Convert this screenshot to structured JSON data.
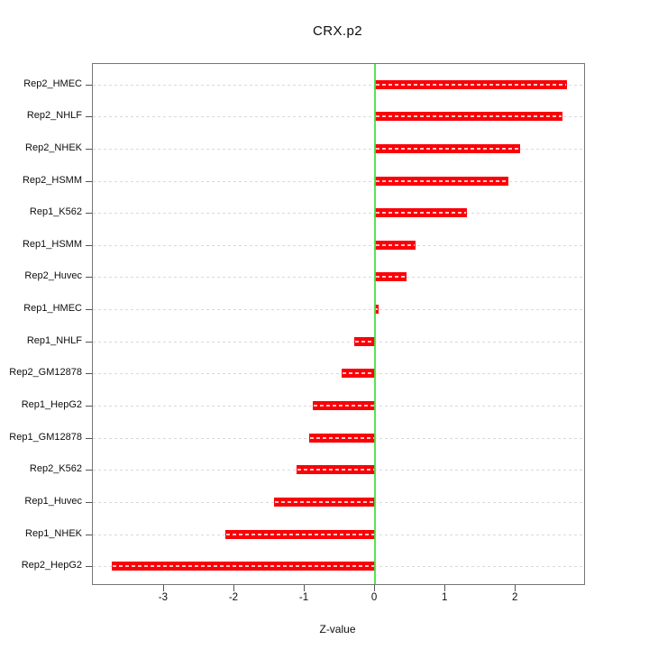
{
  "window": {
    "title": "CRX.p2"
  },
  "chart_data": {
    "type": "bar",
    "orientation": "horizontal",
    "title": "CRX.p2",
    "xlabel": "Z-value",
    "ylabel": "",
    "categories": [
      "Rep2_HMEC",
      "Rep2_NHLF",
      "Rep2_NHEK",
      "Rep2_HSMM",
      "Rep1_K562",
      "Rep1_HSMM",
      "Rep2_Huvec",
      "Rep1_HMEC",
      "Rep1_NHLF",
      "Rep2_GM12878",
      "Rep1_HepG2",
      "Rep1_GM12878",
      "Rep2_K562",
      "Rep1_Huvec",
      "Rep1_NHEK",
      "Rep2_HepG2"
    ],
    "values": [
      2.73,
      2.66,
      2.06,
      1.89,
      1.3,
      0.57,
      0.45,
      0.05,
      -0.29,
      -0.47,
      -0.88,
      -0.93,
      -1.11,
      -1.44,
      -2.13,
      -3.74
    ],
    "x_ticks": [
      "-3",
      "-2",
      "-1",
      "0",
      "1",
      "2"
    ],
    "x_tick_values": [
      -3,
      -2,
      -1,
      0,
      1,
      2
    ],
    "xlim": [
      -4.01,
      2.97
    ],
    "grid": "dotted horizontal line per category",
    "legend": "none",
    "colors": {
      "bar": "#fb0007",
      "zero_line": "#44e144",
      "gridline": "#d9d9d9",
      "box_border": "#757575",
      "text": "#0d0d0d"
    }
  }
}
